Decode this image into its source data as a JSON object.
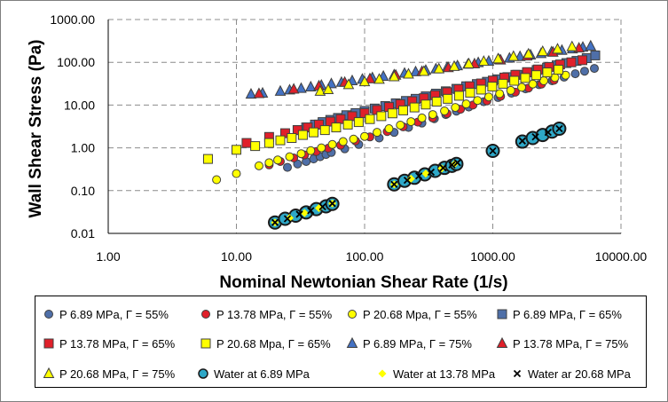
{
  "chart_data": {
    "type": "scatter",
    "xlabel": "Nominal Newtonian Shear Rate (1/s)",
    "ylabel": "Wall Shear Stress (Pa)",
    "xscale": "log",
    "yscale": "log",
    "xlim": [
      1,
      10000
    ],
    "ylim": [
      0.01,
      1000
    ],
    "x_ticks": [
      1,
      10,
      100,
      1000,
      10000
    ],
    "y_ticks": [
      0.01,
      0.1,
      1,
      10,
      100,
      1000
    ],
    "x_tick_labels": [
      "1.00",
      "10.00",
      "100.00",
      "1000.00",
      "10000.00"
    ],
    "y_tick_labels": [
      "0.01",
      "0.10",
      "1.00",
      "10.00",
      "100.00",
      "1000.00"
    ],
    "grid": "dashed, major gridlines",
    "legend_position": "bottom",
    "series": [
      {
        "name": "P  6.89  MPa, Γ = 55%",
        "marker": "circle",
        "color": "#4f6fa8",
        "x": [
          25,
          30,
          35,
          40,
          45,
          50,
          55,
          70,
          90,
          130,
          170,
          220,
          280,
          350,
          430,
          520,
          650,
          850,
          1100,
          1400,
          1800,
          2300,
          2900,
          3600,
          4400,
          5200,
          6200
        ],
        "y": [
          0.35,
          0.42,
          0.48,
          0.55,
          0.62,
          0.7,
          0.78,
          0.95,
          1.2,
          1.7,
          2.3,
          3.0,
          3.8,
          4.8,
          6.0,
          7.2,
          9.0,
          12,
          15,
          19,
          24,
          30,
          37,
          45,
          54,
          62,
          72
        ]
      },
      {
        "name": "P  13.78  MPa, Γ = 55%",
        "marker": "circle",
        "color": "#e0202a",
        "x": [
          18,
          22,
          28,
          34,
          42,
          52,
          65,
          85,
          110,
          150,
          200,
          260,
          340,
          440,
          560,
          700,
          900,
          1150,
          1500,
          1900,
          2400,
          3000
        ],
        "y": [
          0.4,
          0.48,
          0.58,
          0.68,
          0.82,
          0.98,
          1.15,
          1.45,
          1.8,
          2.4,
          3.1,
          4.0,
          5.0,
          6.3,
          8.0,
          10,
          12.5,
          16,
          20,
          25,
          31,
          38
        ]
      },
      {
        "name": "P  20.68  Mpa, Γ = 55%",
        "marker": "circle",
        "color": "#ffff00",
        "x": [
          7,
          10,
          15,
          18,
          21,
          26,
          32,
          38,
          46,
          56,
          68,
          82,
          100,
          125,
          155,
          190,
          230,
          280,
          340,
          420,
          510,
          620,
          760,
          930,
          1130,
          1380,
          1680,
          2050,
          2500,
          3050,
          3700
        ],
        "y": [
          0.18,
          0.25,
          0.38,
          0.45,
          0.52,
          0.62,
          0.73,
          0.86,
          1.0,
          1.2,
          1.4,
          1.6,
          1.85,
          2.3,
          2.8,
          3.4,
          4.1,
          5.0,
          6.0,
          7.3,
          8.8,
          10.6,
          12.8,
          15.5,
          18.5,
          22,
          26,
          31,
          37,
          44,
          50
        ]
      },
      {
        "name": "P  6.89  MPa, Γ = 65%",
        "marker": "square",
        "color": "#4f6fa8",
        "x": [
          30,
          35,
          41,
          47,
          54,
          62,
          72,
          85,
          100,
          120,
          145,
          175,
          210,
          250,
          300,
          360,
          430,
          520,
          620,
          750,
          900,
          1080,
          1300,
          1550,
          1850,
          2200,
          2650,
          3150,
          3750,
          4500,
          5400,
          6300
        ],
        "y": [
          2.6,
          3.0,
          3.5,
          4.0,
          4.5,
          5.0,
          5.8,
          6.5,
          7.3,
          8.3,
          9.5,
          11,
          12.5,
          14,
          16,
          18.5,
          21,
          24,
          27.5,
          31,
          35,
          40,
          45,
          51,
          58,
          66,
          75,
          85,
          96,
          108,
          125,
          145
        ]
      },
      {
        "name": "P  13.78  MPa, Γ = 65%",
        "marker": "square",
        "color": "#e0202a",
        "x": [
          12,
          18,
          24,
          30,
          36,
          44,
          54,
          65,
          80,
          100,
          125,
          155,
          190,
          235,
          290,
          355,
          440,
          540,
          660,
          810,
          1000,
          1230,
          1500,
          1850,
          2250,
          2750,
          3350,
          4100,
          5000
        ],
        "y": [
          1.3,
          1.8,
          2.2,
          2.6,
          3.0,
          3.5,
          4.1,
          4.7,
          5.5,
          6.5,
          7.7,
          9.0,
          10.5,
          12.3,
          14.5,
          17,
          20,
          23.5,
          27.5,
          32,
          37.5,
          44,
          51,
          59,
          68,
          78,
          89,
          100,
          112
        ]
      },
      {
        "name": "P  20.68  Mpa, Γ = 65%",
        "marker": "square",
        "color": "#ffff00",
        "x": [
          6,
          10,
          14,
          18,
          22,
          27,
          33,
          40,
          49,
          60,
          74,
          90,
          110,
          135,
          165,
          200,
          245,
          300,
          365,
          445,
          545,
          665,
          810,
          990,
          1200,
          1470,
          1790,
          2180,
          2660,
          3250
        ],
        "y": [
          0.55,
          0.9,
          1.1,
          1.3,
          1.5,
          1.7,
          2.0,
          2.3,
          2.6,
          3.0,
          3.5,
          4.0,
          4.7,
          5.5,
          6.4,
          7.5,
          8.8,
          10.3,
          12,
          14,
          16.5,
          19.5,
          23,
          27,
          31.5,
          37,
          43,
          50,
          58,
          67
        ]
      },
      {
        "name": "P  6.89  MPa, Γ = 75%",
        "marker": "triangle",
        "color": "#4472c4",
        "x": [
          13,
          16,
          22,
          26,
          32,
          38,
          46,
          55,
          66,
          80,
          96,
          115,
          140,
          170,
          205,
          250,
          300,
          360,
          440,
          530,
          640,
          770,
          930,
          1120,
          1350,
          1630,
          1970,
          2380,
          2870,
          3460,
          4180,
          5040,
          5800
        ],
        "y": [
          18,
          19,
          21,
          22.5,
          24.5,
          26.5,
          29,
          31.5,
          34,
          37,
          40,
          43.5,
          47,
          51,
          55.5,
          60,
          65,
          70,
          76,
          83,
          90,
          98,
          106,
          115,
          125,
          136,
          148,
          160,
          175,
          190,
          205,
          225,
          240
        ]
      },
      {
        "name": "P  13.78  MPa, Γ = 75%",
        "marker": "triangle",
        "color": "#e0202a",
        "x": [
          15,
          28,
          44,
          70,
          110,
          175,
          280,
          450,
          720,
          1150,
          1850,
          2950,
          4700
        ],
        "y": [
          18.5,
          23.5,
          28,
          34,
          41,
          50,
          61,
          75,
          92,
          113,
          140,
          172,
          215
        ]
      },
      {
        "name": "P  20.68  MPa, Γ = 75%",
        "marker": "triangle",
        "color": "#ffff00",
        "x": [
          45,
          52,
          75,
          100,
          130,
          170,
          220,
          290,
          380,
          500,
          650,
          850,
          1100,
          1450,
          1900,
          2450,
          3200,
          4150
        ],
        "y": [
          21,
          23,
          30,
          35,
          40,
          46,
          53,
          61,
          70,
          80,
          92,
          105,
          120,
          137,
          156,
          178,
          203,
          231
        ]
      },
      {
        "name": "Water at 6.89 MPa",
        "marker": "circle-large",
        "color": "#2ea8c8",
        "x": [
          20,
          24,
          29,
          35,
          42,
          50,
          56,
          170,
          205,
          245,
          295,
          355,
          420,
          480,
          520,
          1000,
          1700,
          2050,
          2450,
          2900,
          3300
        ],
        "y": [
          0.018,
          0.022,
          0.026,
          0.031,
          0.037,
          0.043,
          0.049,
          0.14,
          0.17,
          0.2,
          0.24,
          0.29,
          0.34,
          0.38,
          0.42,
          0.85,
          1.4,
          1.7,
          2.0,
          2.4,
          2.8
        ]
      },
      {
        "name": "Water at 13.78 MPa",
        "marker": "diamond",
        "color": "#ffff00",
        "x": [
          20,
          26,
          34,
          44,
          56,
          170,
          230,
          300,
          400,
          500
        ],
        "y": [
          0.018,
          0.023,
          0.03,
          0.039,
          0.05,
          0.14,
          0.19,
          0.25,
          0.33,
          0.41
        ]
      },
      {
        "name": "Water ar 20.68 MPa",
        "marker": "x",
        "color": "#000000",
        "x": [
          20,
          25,
          31,
          38,
          47,
          56,
          170,
          215,
          265,
          330,
          410,
          480,
          530,
          1000,
          1700,
          2150,
          2700,
          3300
        ],
        "y": [
          0.018,
          0.022,
          0.028,
          0.034,
          0.042,
          0.05,
          0.14,
          0.175,
          0.22,
          0.27,
          0.34,
          0.4,
          0.45,
          0.85,
          1.45,
          1.8,
          2.3,
          2.8
        ]
      }
    ]
  }
}
